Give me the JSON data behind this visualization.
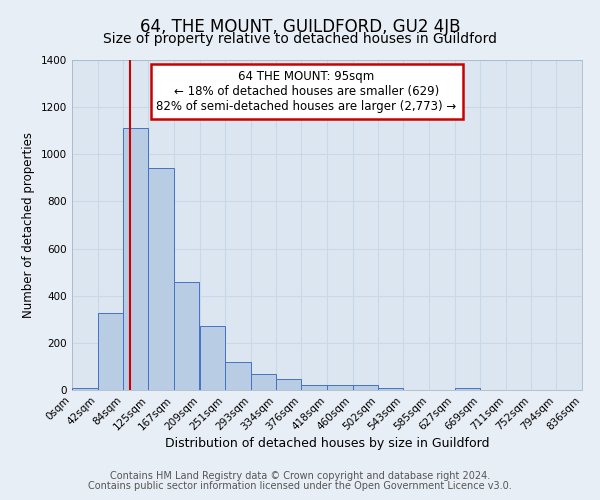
{
  "title": "64, THE MOUNT, GUILDFORD, GU2 4JB",
  "subtitle": "Size of property relative to detached houses in Guildford",
  "xlabel": "Distribution of detached houses by size in Guildford",
  "ylabel": "Number of detached properties",
  "bin_edges": [
    0,
    42,
    84,
    125,
    167,
    209,
    251,
    293,
    334,
    376,
    418,
    460,
    502,
    543,
    585,
    627,
    669,
    711,
    752,
    794,
    836
  ],
  "bin_labels": [
    "0sqm",
    "42sqm",
    "84sqm",
    "125sqm",
    "167sqm",
    "209sqm",
    "251sqm",
    "293sqm",
    "334sqm",
    "376sqm",
    "418sqm",
    "460sqm",
    "502sqm",
    "543sqm",
    "585sqm",
    "627sqm",
    "669sqm",
    "711sqm",
    "752sqm",
    "794sqm",
    "836sqm"
  ],
  "bar_heights": [
    10,
    325,
    1110,
    940,
    460,
    270,
    120,
    68,
    45,
    20,
    20,
    22,
    10,
    0,
    0,
    10,
    0,
    0,
    0,
    0
  ],
  "bar_color": "#b8cce4",
  "bar_edge_color": "#4472c4",
  "vline_x": 95,
  "vline_color": "#cc0000",
  "annotation_line1": "64 THE MOUNT: 95sqm",
  "annotation_line2": "← 18% of detached houses are smaller (629)",
  "annotation_line3": "82% of semi-detached houses are larger (2,773) →",
  "annotation_box_color": "#ffffff",
  "annotation_box_edge": "#cc0000",
  "ylim": [
    0,
    1400
  ],
  "yticks": [
    0,
    200,
    400,
    600,
    800,
    1000,
    1200,
    1400
  ],
  "bg_color": "#e8eef5",
  "plot_bg_color": "#dce6f0",
  "grid_color": "#c8d8e8",
  "footer_line1": "Contains HM Land Registry data © Crown copyright and database right 2024.",
  "footer_line2": "Contains public sector information licensed under the Open Government Licence v3.0.",
  "title_fontsize": 12,
  "subtitle_fontsize": 10,
  "xlabel_fontsize": 9,
  "ylabel_fontsize": 8.5,
  "tick_fontsize": 7.5,
  "annot_fontsize": 8.5,
  "footer_fontsize": 7
}
